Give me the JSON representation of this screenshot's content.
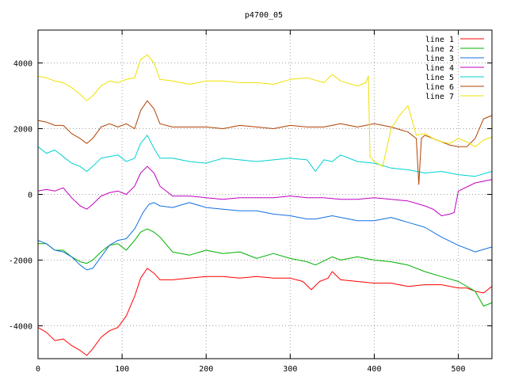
{
  "chart_data": {
    "type": "line",
    "title": "p4700_05",
    "xlabel": "",
    "ylabel": "",
    "xlim": [
      0,
      540
    ],
    "ylim": [
      -5000,
      5000
    ],
    "xticks": [
      0,
      100,
      200,
      300,
      400,
      500
    ],
    "yticks": [
      -4000,
      -2000,
      0,
      2000,
      4000
    ],
    "grid": true,
    "legend_position": "top-right",
    "series": [
      {
        "name": "line 1",
        "color": "#ff0000",
        "x": [
          0,
          10,
          20,
          30,
          40,
          50,
          58,
          65,
          75,
          85,
          95,
          105,
          115,
          122,
          130,
          138,
          145,
          160,
          180,
          200,
          220,
          240,
          260,
          280,
          300,
          315,
          325,
          335,
          345,
          350,
          360,
          380,
          400,
          420,
          440,
          460,
          480,
          500,
          510,
          520,
          530,
          540
        ],
        "y": [
          -4050,
          -4200,
          -4450,
          -4400,
          -4600,
          -4750,
          -4900,
          -4700,
          -4350,
          -4150,
          -4050,
          -3700,
          -3100,
          -2550,
          -2250,
          -2400,
          -2600,
          -2600,
          -2550,
          -2500,
          -2500,
          -2550,
          -2500,
          -2550,
          -2550,
          -2650,
          -2900,
          -2650,
          -2550,
          -2350,
          -2600,
          -2650,
          -2700,
          -2700,
          -2800,
          -2750,
          -2750,
          -2850,
          -2850,
          -2950,
          -3000,
          -2800
        ]
      },
      {
        "name": "line 2",
        "color": "#00b000",
        "x": [
          0,
          10,
          20,
          30,
          40,
          50,
          58,
          65,
          75,
          85,
          95,
          105,
          115,
          122,
          130,
          138,
          145,
          160,
          180,
          200,
          220,
          240,
          260,
          280,
          300,
          320,
          330,
          350,
          360,
          380,
          400,
          420,
          440,
          460,
          480,
          500,
          510,
          520,
          530,
          540
        ],
        "y": [
          -1500,
          -1500,
          -1700,
          -1700,
          -1900,
          -2050,
          -2100,
          -2000,
          -1750,
          -1550,
          -1500,
          -1700,
          -1400,
          -1150,
          -1050,
          -1150,
          -1300,
          -1750,
          -1850,
          -1700,
          -1800,
          -1750,
          -1950,
          -1800,
          -1950,
          -2050,
          -2150,
          -1900,
          -2000,
          -1900,
          -2000,
          -2050,
          -2150,
          -2350,
          -2500,
          -2650,
          -2800,
          -2950,
          -3400,
          -3300
        ]
      },
      {
        "name": "line 3",
        "color": "#1070e0",
        "x": [
          0,
          10,
          20,
          30,
          40,
          50,
          58,
          65,
          75,
          85,
          95,
          105,
          115,
          125,
          132,
          138,
          145,
          160,
          180,
          200,
          220,
          240,
          260,
          280,
          300,
          320,
          330,
          350,
          360,
          380,
          400,
          420,
          440,
          460,
          480,
          500,
          520,
          540
        ],
        "y": [
          -1400,
          -1500,
          -1700,
          -1750,
          -1900,
          -2150,
          -2300,
          -2250,
          -1900,
          -1550,
          -1400,
          -1350,
          -1050,
          -550,
          -300,
          -250,
          -350,
          -400,
          -250,
          -400,
          -450,
          -500,
          -500,
          -600,
          -650,
          -750,
          -750,
          -650,
          -700,
          -800,
          -800,
          -700,
          -850,
          -1000,
          -1300,
          -1550,
          -1750,
          -1600
        ]
      },
      {
        "name": "line 4",
        "color": "#c000c0",
        "x": [
          0,
          10,
          20,
          30,
          40,
          50,
          58,
          65,
          75,
          85,
          95,
          105,
          115,
          122,
          130,
          138,
          145,
          160,
          180,
          200,
          220,
          240,
          260,
          280,
          300,
          320,
          340,
          360,
          380,
          400,
          420,
          440,
          460,
          470,
          475,
          480,
          490,
          495,
          500,
          520,
          540
        ],
        "y": [
          100,
          150,
          100,
          200,
          -100,
          -350,
          -450,
          -300,
          -50,
          50,
          100,
          0,
          250,
          650,
          850,
          650,
          250,
          -50,
          -50,
          -100,
          -150,
          -100,
          -100,
          -100,
          -50,
          -100,
          -100,
          -150,
          -150,
          -100,
          -150,
          -200,
          -350,
          -450,
          -550,
          -650,
          -600,
          -550,
          100,
          350,
          450
        ]
      },
      {
        "name": "line 5",
        "color": "#00d0d0",
        "x": [
          0,
          10,
          20,
          30,
          40,
          50,
          58,
          65,
          75,
          85,
          95,
          105,
          115,
          122,
          130,
          138,
          145,
          160,
          180,
          200,
          220,
          240,
          260,
          280,
          300,
          320,
          330,
          340,
          350,
          360,
          380,
          400,
          420,
          440,
          460,
          480,
          500,
          520,
          540
        ],
        "y": [
          1450,
          1250,
          1350,
          1150,
          950,
          850,
          700,
          850,
          1100,
          1150,
          1200,
          1000,
          1100,
          1550,
          1800,
          1400,
          1100,
          1100,
          1000,
          950,
          1100,
          1050,
          1000,
          1050,
          1100,
          1050,
          700,
          1050,
          1000,
          1200,
          1000,
          950,
          800,
          750,
          650,
          700,
          600,
          550,
          700
        ]
      },
      {
        "name": "line 6",
        "color": "#b04000",
        "x": [
          0,
          10,
          20,
          30,
          40,
          50,
          58,
          65,
          75,
          85,
          95,
          105,
          115,
          122,
          130,
          138,
          145,
          160,
          180,
          200,
          220,
          240,
          260,
          280,
          300,
          320,
          340,
          360,
          380,
          400,
          420,
          440,
          450,
          453,
          456,
          460,
          470,
          480,
          490,
          500,
          510,
          520,
          530,
          540
        ],
        "y": [
          2250,
          2200,
          2100,
          2100,
          1850,
          1700,
          1550,
          1700,
          2050,
          2150,
          2050,
          2150,
          2000,
          2550,
          2850,
          2600,
          2150,
          2050,
          2050,
          2050,
          2000,
          2100,
          2050,
          2000,
          2100,
          2050,
          2050,
          2150,
          2050,
          2150,
          2050,
          1900,
          1700,
          300,
          1700,
          1800,
          1700,
          1600,
          1500,
          1450,
          1450,
          1700,
          2300,
          2400
        ]
      },
      {
        "name": "line 7",
        "color": "#f0e000",
        "x": [
          0,
          10,
          20,
          30,
          40,
          50,
          58,
          65,
          75,
          85,
          95,
          105,
          115,
          122,
          130,
          138,
          145,
          160,
          180,
          200,
          220,
          240,
          260,
          280,
          300,
          320,
          340,
          350,
          360,
          380,
          390,
          393,
          395,
          400,
          410,
          420,
          430,
          440,
          450,
          460,
          470,
          480,
          490,
          500,
          510,
          520,
          530,
          540
        ],
        "y": [
          3600,
          3550,
          3450,
          3400,
          3250,
          3050,
          2850,
          3000,
          3300,
          3450,
          3400,
          3500,
          3550,
          4100,
          4250,
          4000,
          3500,
          3450,
          3350,
          3450,
          3450,
          3400,
          3400,
          3350,
          3500,
          3550,
          3400,
          3650,
          3450,
          3300,
          3400,
          3600,
          1150,
          1000,
          850,
          2000,
          2400,
          2700,
          1800,
          1850,
          1700,
          1600,
          1550,
          1700,
          1600,
          1450,
          1650,
          1750
        ]
      }
    ]
  }
}
